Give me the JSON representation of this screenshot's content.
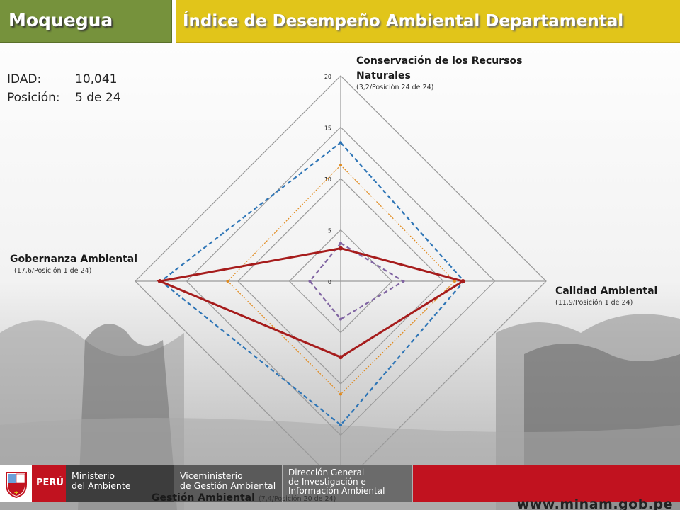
{
  "header": {
    "region": "Moquegua",
    "title": "Índice de Desempeño Ambiental Departamental"
  },
  "info": {
    "idad_label": "IDAD:",
    "idad_value": "10,041",
    "position_label": "Posición:",
    "position_value": "5 de 24"
  },
  "chart_data": {
    "type": "radar",
    "title": "",
    "axes": [
      {
        "name": "Conservación de los Recursos Naturales",
        "detail": "(3,2/Posición 24 de 24)"
      },
      {
        "name": "Calidad Ambiental",
        "detail": "(11,9/Posición 1 de 24)"
      },
      {
        "name": "Gestión Ambiental",
        "detail": "(7,4/Posición 20 de 24)"
      },
      {
        "name": "Gobernanza Ambiental",
        "detail": "(17,6/Posición 1 de 24)"
      }
    ],
    "range": [
      0,
      20
    ],
    "ticks": [
      0,
      5,
      10,
      15,
      20
    ],
    "tick_labels": [
      "0",
      "5",
      "10",
      "15",
      "20"
    ],
    "grid": true,
    "series": [
      {
        "values": [
          3.2,
          11.9,
          7.4,
          17.6
        ],
        "style": "solid",
        "color": "#a61c1c"
      },
      {
        "values": [
          13.5,
          12.0,
          14.0,
          17.5
        ],
        "style": "dashed",
        "color": "#2e75b6"
      },
      {
        "values": [
          11.3,
          11.1,
          11.0,
          11.0
        ],
        "style": "dotted",
        "color": "#e08a1e"
      },
      {
        "values": [
          3.7,
          6.1,
          3.7,
          3.0
        ],
        "style": "dashed",
        "color": "#8064a2"
      }
    ]
  },
  "footer": {
    "country": "PERÚ",
    "ministry": [
      "Ministerio",
      "del Ambiente"
    ],
    "vice": [
      "Viceministerio",
      "de Gestión Ambiental"
    ],
    "direction": [
      "Dirección General",
      "de Investigación e",
      "Información Ambiental"
    ],
    "website": "www.minam.gob.pe"
  },
  "colors": {
    "header_green": "#76923c",
    "header_yellow": "#e1c51a",
    "footer_red": "#c1121f"
  }
}
